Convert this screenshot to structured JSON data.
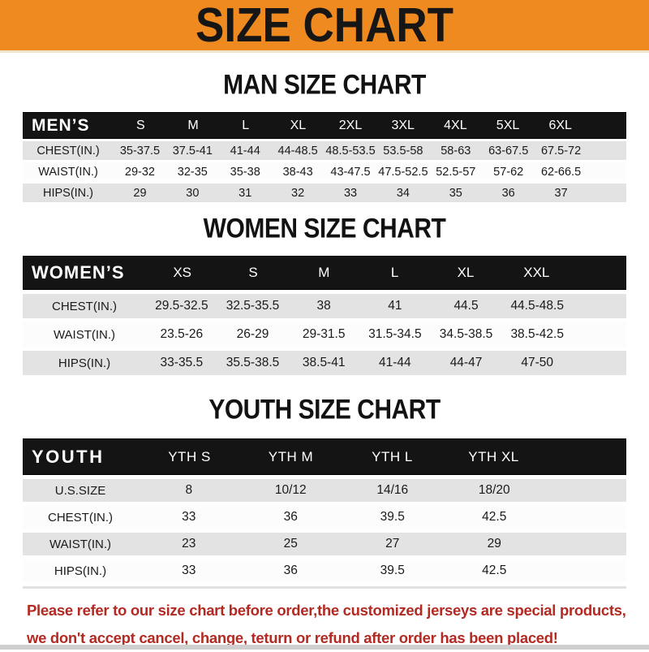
{
  "banner": {
    "title": "SIZE CHART"
  },
  "colors": {
    "banner_bg": "#ee8a1f",
    "header_bar": "#141414",
    "row_gray": "#e3e3e3",
    "row_white": "#fcfcfc",
    "footer_red": "#b22a22"
  },
  "men": {
    "heading": "MAN SIZE CHART",
    "label": "MEN’S",
    "columns": [
      "S",
      "M",
      "L",
      "XL",
      "2XL",
      "3XL",
      "4XL",
      "5XL",
      "6XL"
    ],
    "rows": [
      {
        "label": "CHEST(IN.)",
        "values": [
          "35-37.5",
          "37.5-41",
          "41-44",
          "44-48.5",
          "48.5-53.5",
          "53.5-58",
          "58-63",
          "63-67.5",
          "67.5-72"
        ]
      },
      {
        "label": "WAIST(IN.)",
        "values": [
          "29-32",
          "32-35",
          "35-38",
          "38-43",
          "43-47.5",
          "47.5-52.5",
          "52.5-57",
          "57-62",
          "62-66.5"
        ]
      },
      {
        "label": "HIPS(IN.)",
        "values": [
          "29",
          "30",
          "31",
          "32",
          "33",
          "34",
          "35",
          "36",
          "37"
        ]
      }
    ]
  },
  "women": {
    "heading": "WOMEN SIZE CHART",
    "label": "WOMEN’S",
    "columns": [
      "XS",
      "S",
      "M",
      "L",
      "XL",
      "XXL"
    ],
    "rows": [
      {
        "label": "CHEST(IN.)",
        "values": [
          "29.5-32.5",
          "32.5-35.5",
          "38",
          "41",
          "44.5",
          "44.5-48.5"
        ]
      },
      {
        "label": "WAIST(IN.)",
        "values": [
          "23.5-26",
          "26-29",
          "29-31.5",
          "31.5-34.5",
          "34.5-38.5",
          "38.5-42.5"
        ]
      },
      {
        "label": "HIPS(IN.)",
        "values": [
          "33-35.5",
          "35.5-38.5",
          "38.5-41",
          "41-44",
          "44-47",
          "47-50"
        ]
      }
    ]
  },
  "youth": {
    "heading": "YOUTH SIZE CHART",
    "label": "YOUTH",
    "columns": [
      "YTH S",
      "YTH M",
      "YTH L",
      "YTH XL"
    ],
    "rows": [
      {
        "label": "U.S.SIZE",
        "values": [
          "8",
          "10/12",
          "14/16",
          "18/20"
        ]
      },
      {
        "label": "CHEST(IN.)",
        "values": [
          "33",
          "36",
          "39.5",
          "42.5"
        ]
      },
      {
        "label": "WAIST(IN.)",
        "values": [
          "23",
          "25",
          "27",
          "29"
        ]
      },
      {
        "label": "HIPS(IN.)",
        "values": [
          "33",
          "36",
          "39.5",
          "42.5"
        ]
      }
    ]
  },
  "footer": {
    "line1": "Please refer to our size chart before order,the customized jerseys are special products,",
    "line2": "we don't accept cancel, change, teturn or refund after order has been placed!"
  }
}
